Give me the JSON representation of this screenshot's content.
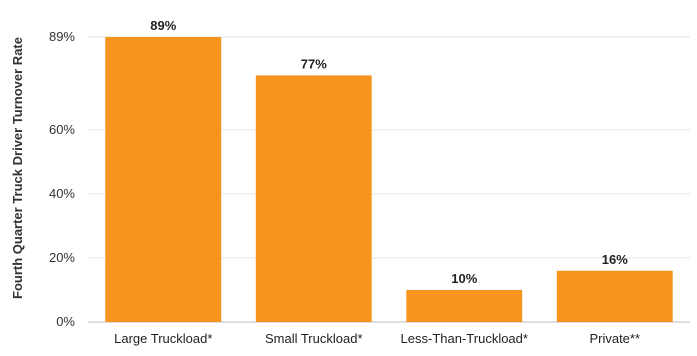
{
  "chart_data": {
    "type": "bar",
    "title": "",
    "xlabel": "",
    "ylabel": "Fourth Quarter Truck Driver Turnover Rate",
    "categories": [
      "Large Truckload*",
      "Small Truckload*",
      "Less-Than-Truckload*",
      "Private**"
    ],
    "values": [
      89,
      77,
      10,
      16
    ],
    "value_labels": [
      "89%",
      "77%",
      "10%",
      "16%"
    ],
    "ylim": [
      0,
      89
    ],
    "yticks": [
      0,
      20,
      40,
      60,
      89
    ],
    "ytick_labels": [
      "0%",
      "20%",
      "40%",
      "60%",
      "89%"
    ],
    "grid": true,
    "bar_color": "#F7941D"
  }
}
